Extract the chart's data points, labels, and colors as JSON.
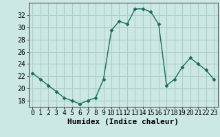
{
  "x": [
    0,
    1,
    2,
    3,
    4,
    5,
    6,
    7,
    8,
    9,
    10,
    11,
    12,
    13,
    14,
    15,
    16,
    17,
    18,
    19,
    20,
    21,
    22,
    23
  ],
  "y": [
    22.5,
    21.5,
    20.5,
    19.5,
    18.5,
    18.0,
    17.5,
    18.0,
    18.5,
    21.5,
    29.5,
    31.0,
    30.5,
    33.0,
    33.0,
    32.5,
    30.5,
    20.5,
    21.5,
    23.5,
    25.0,
    24.0,
    23.0,
    21.5
  ],
  "line_color": "#1a6b5a",
  "marker": "D",
  "marker_size": 2.5,
  "bg_color": "#cce8e4",
  "grid_color": "#b0ccc8",
  "xlabel": "Humidex (Indice chaleur)",
  "xlim": [
    -0.5,
    23.5
  ],
  "ylim": [
    17,
    34
  ],
  "yticks": [
    18,
    20,
    22,
    24,
    26,
    28,
    30,
    32
  ],
  "xticks": [
    0,
    1,
    2,
    3,
    4,
    5,
    6,
    7,
    8,
    9,
    10,
    11,
    12,
    13,
    14,
    15,
    16,
    17,
    18,
    19,
    20,
    21,
    22,
    23
  ],
  "tick_fontsize": 7,
  "xlabel_fontsize": 8
}
